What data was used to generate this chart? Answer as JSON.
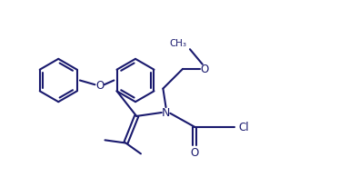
{
  "bg": "#ffffff",
  "lc": "#1a1a6e",
  "lw": 1.5,
  "fs": 7.8,
  "fig_w": 3.95,
  "fig_h": 2.07,
  "dpi": 100,
  "xlim": [
    0,
    10
  ],
  "ylim": [
    0,
    5.25
  ]
}
